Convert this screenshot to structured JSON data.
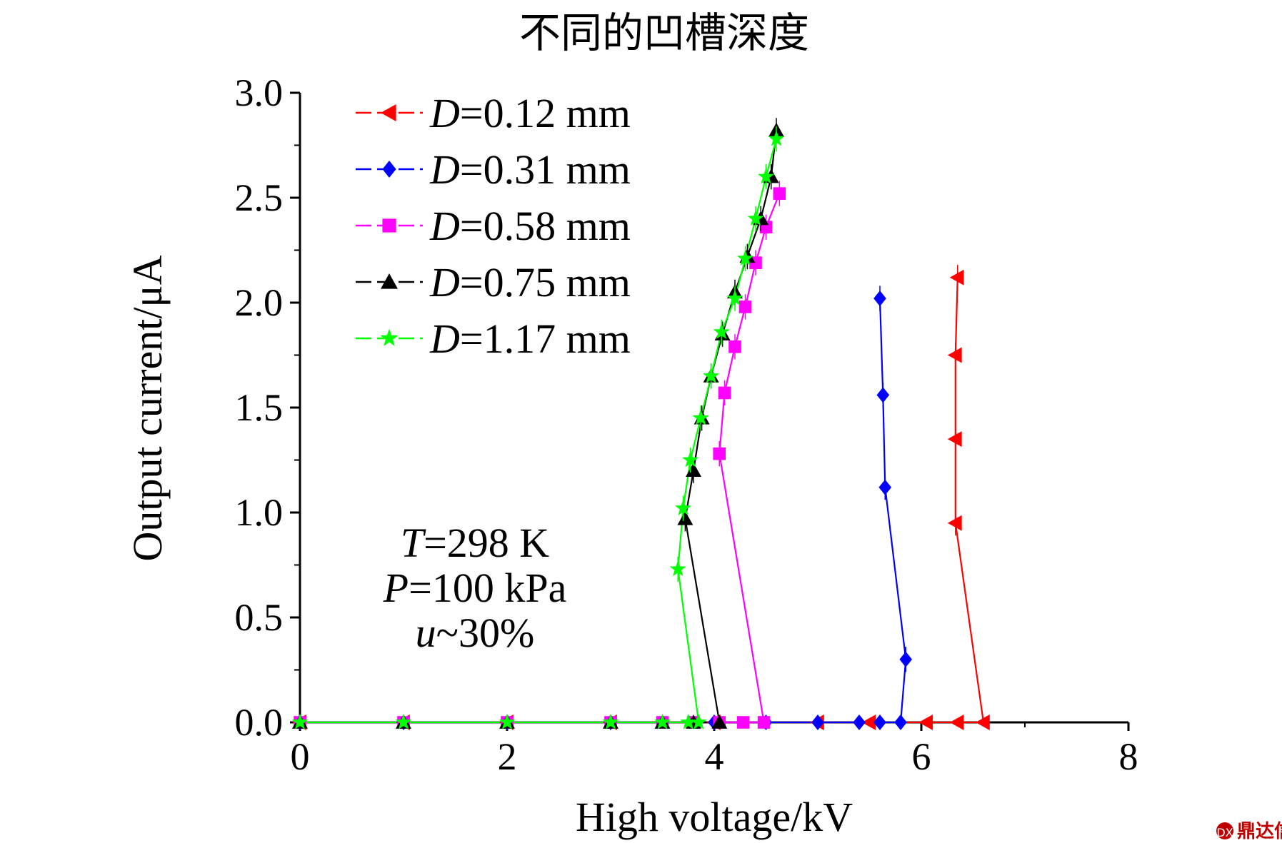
{
  "chart_data": {
    "type": "line",
    "title": "不同的凹槽深度",
    "xlabel": "High voltage/kV",
    "ylabel": "Output current/μA",
    "xlim": [
      0,
      8
    ],
    "ylim": [
      0,
      3.0
    ],
    "x_ticks": [
      "0",
      "2",
      "4",
      "6",
      "8"
    ],
    "y_ticks": [
      "0.0",
      "0.5",
      "1.0",
      "1.5",
      "2.0",
      "2.5",
      "3.0"
    ],
    "legend_position": "top-left",
    "annotations": [
      "T=298 K",
      "P=100 kPa",
      "u~30%"
    ],
    "series": [
      {
        "name": "D=0.12 mm",
        "var": "D",
        "rest": "=0.12 mm",
        "color": "#ff0000",
        "marker": "triangle-left",
        "points": [
          [
            0,
            0
          ],
          [
            1,
            0
          ],
          [
            2,
            0
          ],
          [
            3,
            0
          ],
          [
            4,
            0
          ],
          [
            5,
            0
          ],
          [
            5.5,
            0
          ],
          [
            6.05,
            0
          ],
          [
            6.35,
            0
          ],
          [
            6.6,
            0
          ],
          [
            6.33,
            0.95
          ],
          [
            6.33,
            1.35
          ],
          [
            6.33,
            1.75
          ],
          [
            6.35,
            2.12
          ]
        ]
      },
      {
        "name": "D=0.31 mm",
        "var": "D",
        "rest": "=0.31 mm",
        "color": "#0000ff",
        "marker": "diamond",
        "points": [
          [
            0,
            0
          ],
          [
            1,
            0
          ],
          [
            2,
            0
          ],
          [
            3,
            0
          ],
          [
            4,
            0
          ],
          [
            4.5,
            0
          ],
          [
            5,
            0
          ],
          [
            5.4,
            0
          ],
          [
            5.6,
            0
          ],
          [
            5.8,
            0
          ],
          [
            5.85,
            0.3
          ],
          [
            5.65,
            1.12
          ],
          [
            5.63,
            1.56
          ],
          [
            5.6,
            2.02
          ]
        ]
      },
      {
        "name": "D=0.58 mm",
        "var": "D",
        "rest": "=0.58 mm",
        "color": "#ff00ff",
        "marker": "square",
        "points": [
          [
            0,
            0
          ],
          [
            1,
            0
          ],
          [
            2,
            0
          ],
          [
            3,
            0
          ],
          [
            3.5,
            0
          ],
          [
            3.8,
            0
          ],
          [
            4.05,
            0
          ],
          [
            4.28,
            0
          ],
          [
            4.48,
            0
          ],
          [
            4.05,
            1.28
          ],
          [
            4.1,
            1.57
          ],
          [
            4.2,
            1.79
          ],
          [
            4.3,
            1.98
          ],
          [
            4.4,
            2.19
          ],
          [
            4.5,
            2.36
          ],
          [
            4.63,
            2.52
          ]
        ]
      },
      {
        "name": "D=0.75 mm",
        "var": "D",
        "rest": "=0.75 mm",
        "color": "#000000",
        "marker": "triangle-up",
        "points": [
          [
            0,
            0
          ],
          [
            1,
            0
          ],
          [
            2,
            0
          ],
          [
            3,
            0
          ],
          [
            3.5,
            0
          ],
          [
            3.8,
            0
          ],
          [
            4.05,
            0
          ],
          [
            3.72,
            0.97
          ],
          [
            3.8,
            1.2
          ],
          [
            3.88,
            1.45
          ],
          [
            3.97,
            1.65
          ],
          [
            4.08,
            1.85
          ],
          [
            4.2,
            2.05
          ],
          [
            4.32,
            2.22
          ],
          [
            4.45,
            2.4
          ],
          [
            4.55,
            2.6
          ],
          [
            4.6,
            2.82
          ]
        ]
      },
      {
        "name": "D=1.17 mm",
        "var": "D",
        "rest": "=1.17 mm",
        "color": "#00ff00",
        "marker": "star",
        "points": [
          [
            0,
            0
          ],
          [
            1,
            0
          ],
          [
            2,
            0
          ],
          [
            3,
            0
          ],
          [
            3.5,
            0
          ],
          [
            3.75,
            0
          ],
          [
            3.85,
            0
          ],
          [
            3.65,
            0.73
          ],
          [
            3.7,
            1.02
          ],
          [
            3.77,
            1.25
          ],
          [
            3.87,
            1.45
          ],
          [
            3.97,
            1.65
          ],
          [
            4.07,
            1.86
          ],
          [
            4.2,
            2.02
          ],
          [
            4.3,
            2.21
          ],
          [
            4.4,
            2.4
          ],
          [
            4.5,
            2.6
          ],
          [
            4.6,
            2.78
          ]
        ]
      }
    ]
  },
  "watermark": "鼎达信"
}
